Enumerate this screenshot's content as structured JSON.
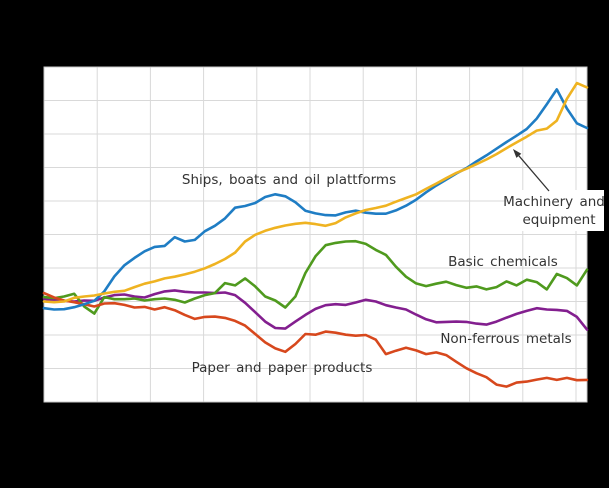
{
  "chart_data": {
    "type": "line",
    "title": "",
    "xlabel": "",
    "ylabel": "",
    "x_tick_labels_visible": false,
    "y_tick_labels_visible": false,
    "grid": true,
    "legend_position": "inline-labels",
    "ylim": [
      70,
      170
    ],
    "baseline_index": 100,
    "n_points": 55,
    "series": [
      {
        "name": "Ships, boats and oil plattforms",
        "color": "#1f7dc4",
        "values": [
          98.0,
          97.6,
          97.7,
          98.3,
          99.2,
          100.2,
          103.0,
          107.5,
          110.8,
          113.0,
          115.0,
          116.3,
          116.6,
          119.2,
          117.9,
          118.4,
          121.0,
          122.6,
          124.8,
          128.0,
          128.5,
          129.4,
          131.2,
          132.0,
          131.4,
          129.6,
          127.1,
          126.3,
          125.8,
          125.7,
          126.6,
          127.1,
          126.5,
          126.2,
          126.2,
          127.2,
          128.6,
          130.4,
          132.6,
          134.6,
          136.4,
          138.2,
          139.8,
          141.8,
          143.6,
          145.6,
          147.6,
          149.5,
          151.5,
          154.6,
          158.9,
          163.3,
          157.6,
          153.2,
          151.8
        ]
      },
      {
        "name": "Machinery and equipment",
        "color": "#efb321",
        "values": [
          100.0,
          99.8,
          100.0,
          101.1,
          101.5,
          101.8,
          102.4,
          102.9,
          103.2,
          104.3,
          105.3,
          106.0,
          106.9,
          107.4,
          108.1,
          108.9,
          109.9,
          111.2,
          112.7,
          114.6,
          117.9,
          119.9,
          121.1,
          122.0,
          122.7,
          123.2,
          123.5,
          123.1,
          122.6,
          123.4,
          125.1,
          126.3,
          127.3,
          127.9,
          128.6,
          129.8,
          130.9,
          132.0,
          133.6,
          135.2,
          136.8,
          138.4,
          139.6,
          141.0,
          142.4,
          144.0,
          145.8,
          147.5,
          149.2,
          151.0,
          151.6,
          154.0,
          160.5,
          165.2,
          163.9
        ]
      },
      {
        "name": "Basic chemicals",
        "color": "#4f9a1e",
        "values": [
          101.3,
          101.0,
          101.5,
          102.3,
          98.5,
          96.4,
          101.3,
          100.7,
          100.7,
          100.9,
          100.3,
          100.7,
          100.9,
          100.5,
          99.7,
          100.9,
          101.9,
          102.5,
          105.5,
          104.8,
          106.9,
          104.5,
          101.5,
          100.3,
          98.2,
          101.5,
          108.5,
          113.5,
          116.8,
          117.5,
          117.9,
          118.0,
          117.2,
          115.4,
          113.9,
          110.4,
          107.4,
          105.4,
          104.6,
          105.3,
          105.9,
          104.9,
          104.1,
          104.5,
          103.6,
          104.3,
          106.0,
          104.8,
          106.5,
          105.8,
          103.6,
          108.2,
          107.0,
          104.8,
          109.5
        ]
      },
      {
        "name": "Non-ferrous metals",
        "color": "#831f8f",
        "values": [
          100.8,
          100.4,
          100.2,
          100.0,
          100.3,
          100.2,
          101.2,
          101.9,
          102.1,
          101.5,
          101.2,
          102.2,
          103.0,
          103.3,
          102.9,
          102.7,
          102.7,
          102.5,
          102.7,
          101.9,
          99.6,
          96.8,
          94.0,
          92.1,
          91.9,
          94.0,
          96.0,
          97.8,
          98.9,
          99.2,
          99.0,
          99.7,
          100.5,
          100.0,
          98.9,
          98.2,
          97.6,
          96.1,
          94.7,
          93.8,
          93.9,
          94.0,
          93.9,
          93.4,
          93.1,
          94.0,
          95.2,
          96.3,
          97.2,
          98.0,
          97.6,
          97.5,
          97.2,
          95.4,
          91.6
        ]
      },
      {
        "name": "Paper and paper products",
        "color": "#d7481d",
        "values": [
          102.5,
          101.2,
          100.3,
          99.8,
          99.2,
          98.5,
          99.4,
          99.5,
          99.0,
          98.2,
          98.4,
          97.6,
          98.3,
          97.4,
          96.0,
          94.8,
          95.4,
          95.5,
          95.1,
          94.2,
          92.8,
          90.3,
          87.8,
          86.0,
          85.0,
          87.3,
          90.3,
          90.1,
          91.0,
          90.7,
          90.1,
          89.8,
          90.0,
          88.6,
          84.3,
          85.3,
          86.2,
          85.4,
          84.3,
          84.8,
          84.0,
          82.0,
          80.1,
          78.6,
          77.4,
          75.2,
          74.6,
          75.8,
          76.1,
          76.7,
          77.2,
          76.6,
          77.2,
          76.5,
          76.6
        ]
      }
    ]
  },
  "labels": {
    "ships": "Ships, boats and oil plattforms",
    "machinery_line1": "Machinery and",
    "machinery_line2": "equipment",
    "basic": "Basic chemicals",
    "nonferrous": "Non-ferrous metals",
    "paper": "Paper and paper products"
  },
  "colors": {
    "background": "#000000",
    "plot_background": "#ffffff",
    "gridline": "#d9d9d9",
    "border": "#c8c8c8",
    "label_text": "#333333",
    "arrow": "#333333"
  }
}
